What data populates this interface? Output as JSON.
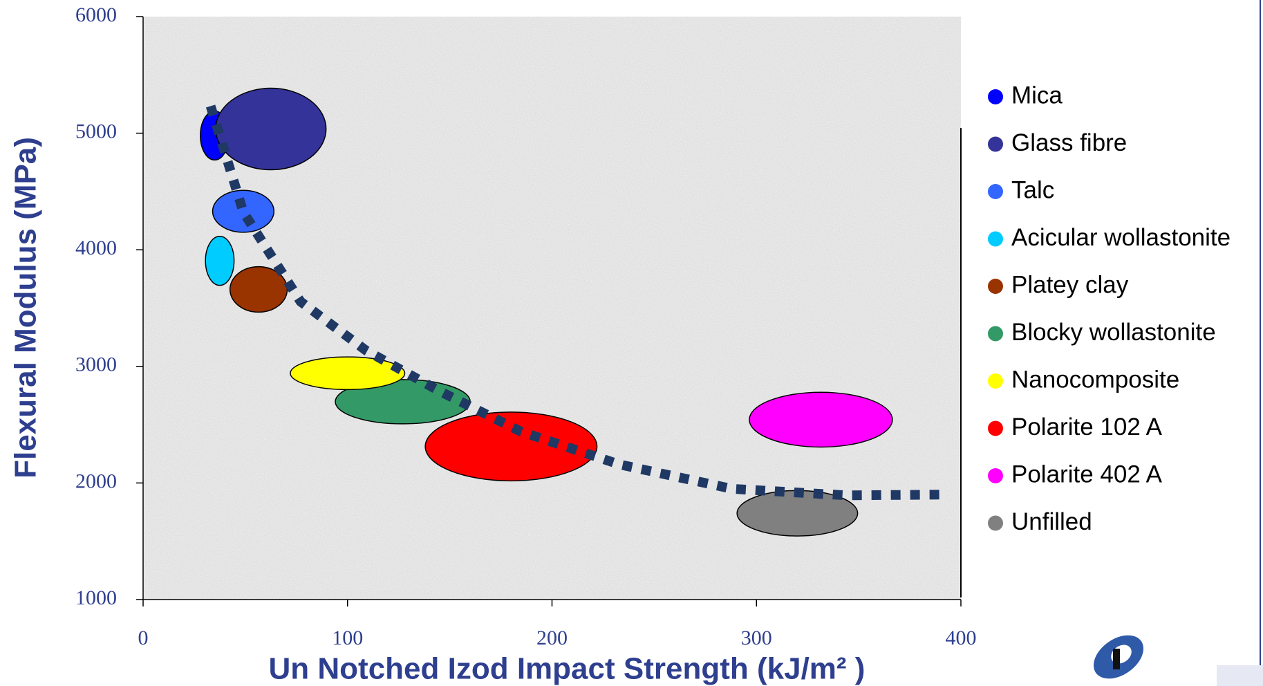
{
  "chart_data": {
    "type": "ellipse",
    "xlabel": "Un Notched Izod Impact Strength (kJ/m² )",
    "ylabel": "Flexural Modulus (MPa)",
    "xlim": [
      0,
      400
    ],
    "xticks": [
      0,
      100,
      200,
      300,
      400
    ],
    "ylim": [
      1000,
      6000
    ],
    "yticks": [
      1000,
      2000,
      3000,
      4000,
      5000,
      6000
    ],
    "series": [
      {
        "name": "Mica",
        "color": "#0000ff",
        "x": 35,
        "y": 4980,
        "x_range": 7,
        "y_range": 210
      },
      {
        "name": "Glass fibre",
        "color": "#333399",
        "x": 62.5,
        "y": 5036,
        "x_range": 27,
        "y_range": 350
      },
      {
        "name": "Talc",
        "color": "#3366ff",
        "x": 49,
        "y": 4330,
        "x_range": 15,
        "y_range": 180
      },
      {
        "name": "Acicular wollastonite",
        "color": "#00ccff",
        "x": 37.5,
        "y": 3905,
        "x_range": 7,
        "y_range": 210
      },
      {
        "name": "Platey clay",
        "color": "#993300",
        "x": 56.5,
        "y": 3660,
        "x_range": 14,
        "y_range": 195
      },
      {
        "name": "Blocky wollastonite",
        "color": "#339966",
        "x": 127,
        "y": 2697,
        "x_range": 33,
        "y_range": 190
      },
      {
        "name": "Nanocomposite",
        "color": "#ffff00",
        "x": 100,
        "y": 2941,
        "x_range": 28,
        "y_range": 140
      },
      {
        "name": "Polarite 102 A",
        "color": "#ff0000",
        "x": 180,
        "y": 2313,
        "x_range": 42,
        "y_range": 295
      },
      {
        "name": "Polarite 402 A",
        "color": "#ff00ff",
        "x": 331.5,
        "y": 2543,
        "x_range": 35,
        "y_range": 235
      },
      {
        "name": "Unfilled",
        "color": "#808080",
        "x": 320,
        "y": 1740,
        "x_range": 29.5,
        "y_range": 195
      }
    ],
    "trend": {
      "color": "#1f3864",
      "x": [
        33,
        49,
        77,
        109,
        145,
        185,
        233,
        288,
        344,
        390
      ],
      "y": [
        5232,
        4324,
        3556,
        3137,
        2788,
        2439,
        2159,
        1950,
        1894,
        1900
      ]
    }
  }
}
